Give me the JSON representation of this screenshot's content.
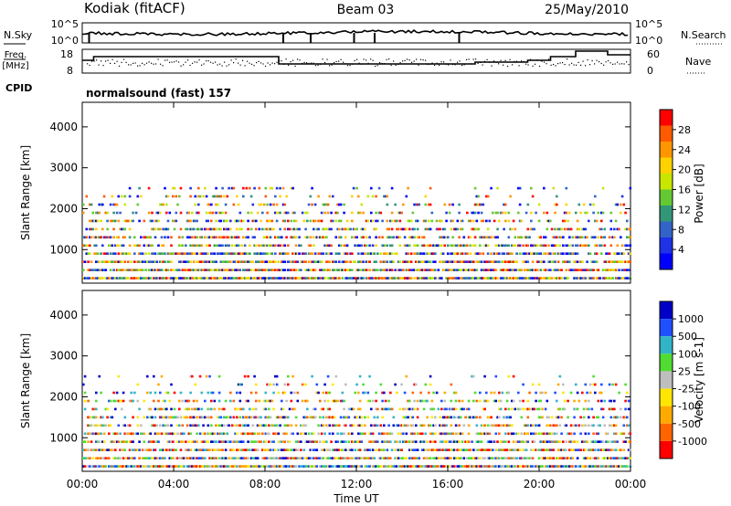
{
  "header": {
    "station": "Kodiak (fitACF)",
    "beam": "Beam 03",
    "date": "25/May/2010"
  },
  "panels": {
    "nsky": {
      "label": "N.Sky",
      "ticks_left": [
        "10^5",
        "10^0"
      ],
      "ticks_right": [
        "10^5",
        "10^0"
      ],
      "right_label": "N.Search"
    },
    "freq": {
      "label_top": "Freq.",
      "label_bottom": "[MHz]",
      "ticks_left": [
        "18",
        "8"
      ],
      "ticks_right": [
        "60",
        "0"
      ],
      "right_label": "Nave"
    },
    "cpid": {
      "label": "CPID",
      "mode": "normalsound (fast) 157"
    }
  },
  "power_colorbar": {
    "label": "Power [dB]",
    "ticks": [
      "28",
      "24",
      "20",
      "16",
      "12",
      "8",
      "4"
    ],
    "colors": [
      "#ff0000",
      "#ff5a00",
      "#ff9600",
      "#ffd200",
      "#c8e600",
      "#64c832",
      "#329678",
      "#3264c8",
      "#1e32e6",
      "#0000ff"
    ]
  },
  "velocity_colorbar": {
    "label": "Velocity [m s-1]",
    "ticks": [
      "1000",
      "500",
      "100",
      "25",
      "-25",
      "-100",
      "-500",
      "-1000"
    ],
    "colors": [
      "#0000c8",
      "#1e50ff",
      "#32b4c8",
      "#50dc32",
      "#bebebe",
      "#ffe600",
      "#ffaa00",
      "#ff6400",
      "#ff0000"
    ]
  },
  "chart_data": [
    {
      "type": "heatmap",
      "name": "power",
      "ylabel": "Slant Range [km]",
      "xlabel": "Time UT",
      "x_ticks": [
        "00:00",
        "04:00",
        "08:00",
        "12:00",
        "16:00",
        "20:00",
        "00:00"
      ],
      "y_ticks": [
        1000,
        2000,
        3000,
        4000
      ],
      "xlim": [
        0,
        24
      ],
      "ylim": [
        180,
        4600
      ],
      "scatter_bands_km": [
        300,
        500,
        700,
        900,
        1100,
        1300,
        1500,
        1700,
        1900,
        2100,
        2300,
        2500
      ]
    },
    {
      "type": "heatmap",
      "name": "velocity",
      "ylabel": "Slant Range [km]",
      "xlabel": "Time UT",
      "x_ticks": [
        "00:00",
        "04:00",
        "08:00",
        "12:00",
        "16:00",
        "20:00",
        "00:00"
      ],
      "y_ticks": [
        1000,
        2000,
        3000,
        4000
      ],
      "xlim": [
        0,
        24
      ],
      "ylim": [
        180,
        4600
      ],
      "scatter_bands_km": [
        300,
        500,
        700,
        900,
        1100,
        1300,
        1500,
        1700,
        1900,
        2100,
        2300,
        2500
      ]
    }
  ]
}
